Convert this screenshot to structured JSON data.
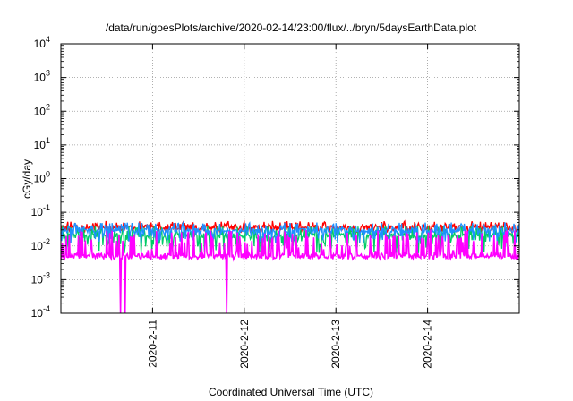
{
  "chart_data": {
    "type": "line",
    "title": "/data/run/goesPlots/archive/2020-02-14/23:00/flux/../bryn/5daysEarthData.plot",
    "xlabel": "Coordinated Universal Time (UTC)",
    "ylabel": "cGy/day",
    "y_scale": "log",
    "ylim": [
      0.0001,
      10000
    ],
    "y_ticks": [
      {
        "base": "10",
        "exp": "-4",
        "value": 0.0001
      },
      {
        "base": "10",
        "exp": "-3",
        "value": 0.001
      },
      {
        "base": "10",
        "exp": "-2",
        "value": 0.01
      },
      {
        "base": "10",
        "exp": "-1",
        "value": 0.1
      },
      {
        "base": "10",
        "exp": "0",
        "value": 1
      },
      {
        "base": "10",
        "exp": "1",
        "value": 10
      },
      {
        "base": "10",
        "exp": "2",
        "value": 100
      },
      {
        "base": "10",
        "exp": "3",
        "value": 1000
      },
      {
        "base": "10",
        "exp": "4",
        "value": 10000
      }
    ],
    "xlim": [
      "2020-02-10T00:00",
      "2020-02-15T00:00"
    ],
    "x_ticks": [
      "2020-2-11",
      "2020-2-12",
      "2020-2-13",
      "2020-2-14"
    ],
    "grid": true,
    "legend": "none",
    "series": [
      {
        "color": "#ff0000",
        "typical_value": 0.035,
        "low": 0.025,
        "high": 0.055
      },
      {
        "color": "#00cc66",
        "typical_value": 0.02,
        "low": 0.006,
        "high": 0.04
      },
      {
        "color": "#1e90ff",
        "typical_value": 0.028,
        "low": 0.012,
        "high": 0.05
      },
      {
        "color": "#ff00ff",
        "typical_value": 0.005,
        "low": 0.004,
        "high": 0.03,
        "dropouts": [
          "2020-02-10T15:40",
          "2020-02-10T16:50",
          "2020-02-11T19:20"
        ]
      }
    ]
  }
}
